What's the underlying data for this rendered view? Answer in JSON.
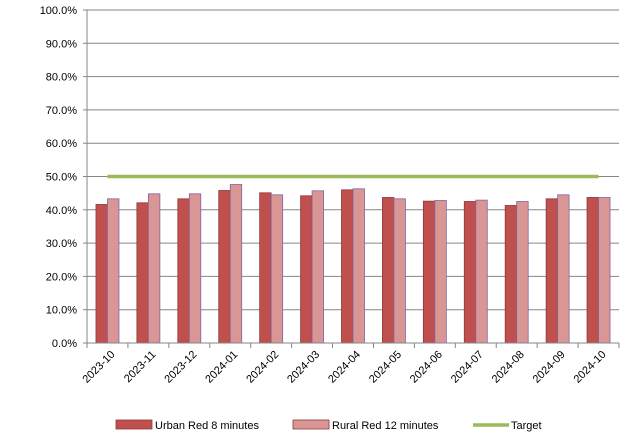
{
  "chart_data": {
    "type": "bar",
    "categories": [
      "2023-10",
      "2023-11",
      "2023-12",
      "2024-01",
      "2024-02",
      "2024-03",
      "2024-04",
      "2024-05",
      "2024-06",
      "2024-07",
      "2024-08",
      "2024-09",
      "2024-10"
    ],
    "series": [
      {
        "name": "Urban Red 8 minutes",
        "kind": "bar",
        "color": "#c0504d",
        "values": [
          41.6,
          42.1,
          43.3,
          45.8,
          45.1,
          44.2,
          46.0,
          43.7,
          42.6,
          42.5,
          41.3,
          43.3,
          43.7
        ]
      },
      {
        "name": "Rural Red 12 minutes",
        "kind": "bar",
        "color": "#d99694",
        "values": [
          43.3,
          44.8,
          44.8,
          47.6,
          44.5,
          45.7,
          46.3,
          43.3,
          42.8,
          42.9,
          42.5,
          44.5,
          43.7
        ]
      },
      {
        "name": "Target",
        "kind": "line",
        "color": "#9bbb59",
        "values": [
          50.0,
          50.0,
          50.0,
          50.0,
          50.0,
          50.0,
          50.0,
          50.0,
          50.0,
          50.0,
          50.0,
          50.0,
          50.0
        ]
      }
    ],
    "yticks": [
      "0.0%",
      "10.0%",
      "20.0%",
      "30.0%",
      "40.0%",
      "50.0%",
      "60.0%",
      "70.0%",
      "80.0%",
      "90.0%",
      "100.0%"
    ],
    "ylim": [
      0,
      100
    ],
    "grid": true,
    "legend": "bottom",
    "title": "",
    "xlabel": "",
    "ylabel": ""
  }
}
